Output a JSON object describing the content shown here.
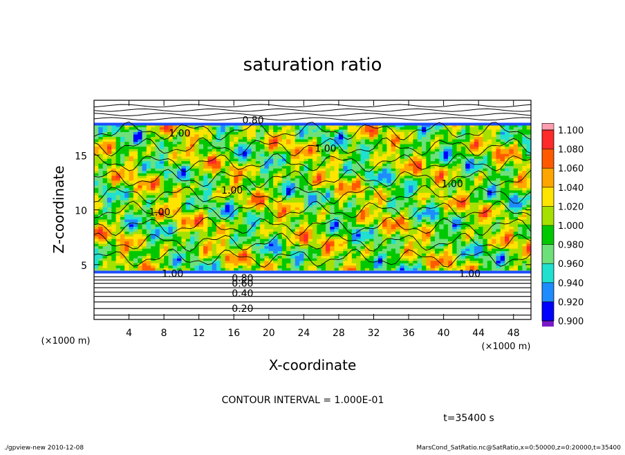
{
  "chart_data": {
    "type": "heatmap",
    "title": "saturation ratio",
    "xlabel": "X-coordinate",
    "ylabel": "Z-coordinate",
    "x_unit": "(×1000 m)",
    "y_unit": "(×1000 m)",
    "xlim": [
      0,
      50
    ],
    "ylim": [
      0,
      20
    ],
    "x_ticks": [
      "4",
      "8",
      "12",
      "16",
      "20",
      "24",
      "28",
      "32",
      "36",
      "40",
      "44",
      "48"
    ],
    "x_tick_values": [
      4,
      8,
      12,
      16,
      20,
      24,
      28,
      32,
      36,
      40,
      44,
      48
    ],
    "y_ticks": [
      "5",
      "10",
      "15"
    ],
    "y_tick_values": [
      5,
      10,
      15
    ],
    "colorbar": {
      "labels": [
        "1.100",
        "1.080",
        "1.060",
        "1.040",
        "1.020",
        "1.000",
        "0.980",
        "0.960",
        "0.940",
        "0.920",
        "0.900"
      ],
      "colors": [
        "#ff9fb0",
        "#ff2a2a",
        "#ff5a00",
        "#ffa500",
        "#ffe400",
        "#a6e000",
        "#00c800",
        "#6ee07a",
        "#20e0d0",
        "#1e8cff",
        "#0000ff",
        "#000090",
        "#7a18c8"
      ]
    },
    "contour_labels": [
      {
        "text": "0.80",
        "x": 18.2,
        "z": 18.2
      },
      {
        "text": "1.00",
        "x": 9.8,
        "z": 17.0
      },
      {
        "text": "1.00",
        "x": 26.5,
        "z": 15.6
      },
      {
        "text": "1.00",
        "x": 41.0,
        "z": 12.4
      },
      {
        "text": "1.00",
        "x": 15.8,
        "z": 11.8
      },
      {
        "text": "1.00",
        "x": 7.5,
        "z": 9.8
      },
      {
        "text": "1.00",
        "x": 9.0,
        "z": 4.2
      },
      {
        "text": "1.00",
        "x": 43.0,
        "z": 4.2
      },
      {
        "text": "0.80",
        "x": 17.0,
        "z": 3.8
      },
      {
        "text": "0.60",
        "x": 17.0,
        "z": 3.3
      },
      {
        "text": "0.40",
        "x": 17.0,
        "z": 2.4
      },
      {
        "text": "0.20",
        "x": 17.0,
        "z": 1.0
      }
    ],
    "contour_interval": "CONTOUR INTERVAL = 1.000E-01",
    "time_label": "t=35400 s",
    "footer_left": "./gpview-new   2010-12-08",
    "footer_right": "MarsCond_SatRatio.nc@SatRatio,x=0:50000,z=0:20000,t=35400"
  }
}
